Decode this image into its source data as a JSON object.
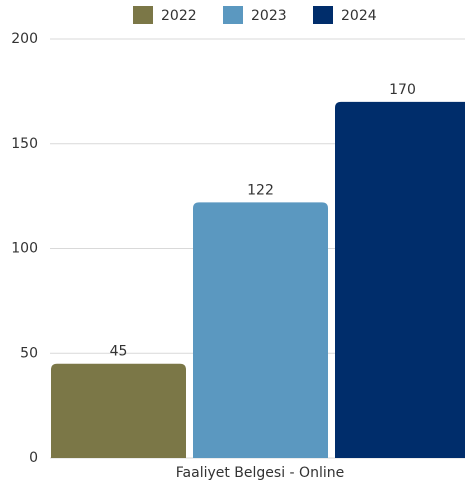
{
  "chart_data": {
    "type": "bar",
    "categories": [
      "Faaliyet Belgesi - Online"
    ],
    "series": [
      {
        "name": "2022",
        "color": "#7b7747",
        "values": [
          45
        ]
      },
      {
        "name": "2023",
        "color": "#5b98c0",
        "values": [
          122
        ]
      },
      {
        "name": "2024",
        "color": "#002d6b",
        "values": [
          170
        ]
      }
    ],
    "ylim": [
      0,
      200
    ],
    "yticks": [
      0,
      50,
      100,
      150,
      200
    ],
    "grid": true,
    "legend": "top"
  }
}
